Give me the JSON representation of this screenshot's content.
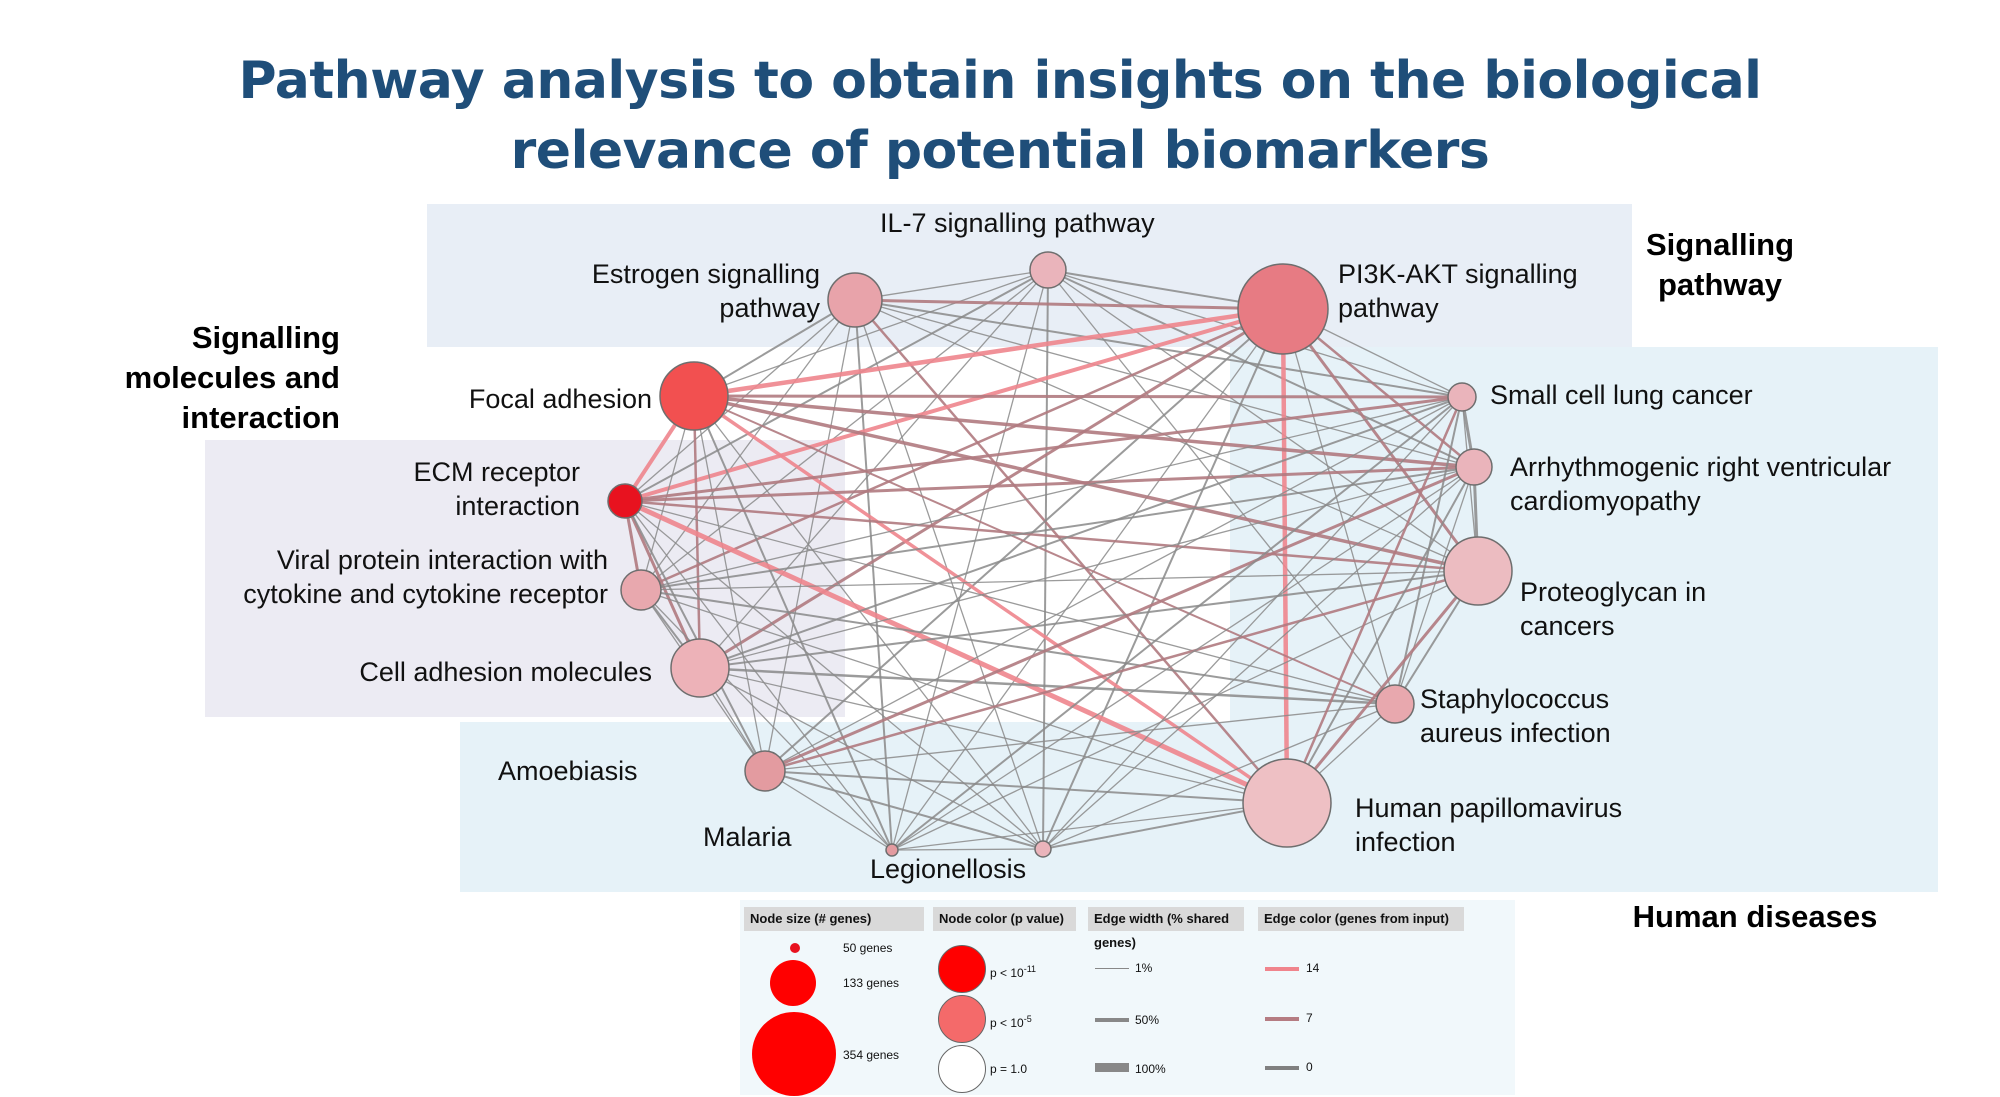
{
  "title": {
    "line1": "Pathway analysis to obtain insights on the biological",
    "line2": "relevance of potential biomarkers"
  },
  "categories": {
    "signalling_pathway": [
      "Signalling",
      "pathway"
    ],
    "signalling_molecules": [
      "Signalling",
      "molecules and",
      "interaction"
    ],
    "human_diseases": [
      "Human diseases"
    ]
  },
  "nodes": [
    {
      "id": "il7",
      "label_lines": [
        "IL-7 signalling pathway"
      ],
      "color": "#eab4bb"
    },
    {
      "id": "estrogen",
      "label_lines": [
        "Estrogen signalling",
        "pathway"
      ],
      "color": "#e8a3aa"
    },
    {
      "id": "pi3k",
      "label_lines": [
        "PI3K-AKT signalling",
        "pathway"
      ],
      "color": "#e77b83"
    },
    {
      "id": "focal",
      "label_lines": [
        "Focal adhesion"
      ],
      "color": "#f25050"
    },
    {
      "id": "ecm",
      "label_lines": [
        "ECM receptor",
        "interaction"
      ],
      "color": "#e8121f"
    },
    {
      "id": "viral",
      "label_lines": [
        "Viral protein interaction with",
        "cytokine and cytokine receptor"
      ],
      "color": "#e8a8ae"
    },
    {
      "id": "cam",
      "label_lines": [
        "Cell adhesion molecules"
      ],
      "color": "#edb2b8"
    },
    {
      "id": "amoeb",
      "label_lines": [
        "Amoebiasis"
      ],
      "color": "#e39ba0"
    },
    {
      "id": "malaria",
      "label_lines": [
        "Malaria"
      ],
      "color": "#e39ba0"
    },
    {
      "id": "legion",
      "label_lines": [
        "Legionellosis"
      ],
      "color": "#eab4bb"
    },
    {
      "id": "scl",
      "label_lines": [
        "Small cell lung cancer"
      ],
      "color": "#eab4bb"
    },
    {
      "id": "arrhy",
      "label_lines": [
        "Arrhythmogenic right ventricular",
        "cardiomyopathy"
      ],
      "color": "#eab4bb"
    },
    {
      "id": "proteo",
      "label_lines": [
        "Proteoglycan in",
        "cancers"
      ],
      "color": "#ecbcc1"
    },
    {
      "id": "staph",
      "label_lines": [
        "Staphylococcus",
        "aureus infection"
      ],
      "color": "#e8a8ae"
    },
    {
      "id": "hpv",
      "label_lines": [
        "Human papillomavirus",
        "infection"
      ],
      "color": "#eec0c4"
    },
    {
      "id": "small_legion",
      "label_lines": [],
      "color": "#eab4bb"
    }
  ],
  "legend": {
    "node_size": {
      "header": "Node size (# genes)",
      "items": [
        "50 genes",
        "133 genes",
        "354 genes"
      ]
    },
    "node_color": {
      "header": "Node color (p value)",
      "items": [
        {
          "text": "p < 10",
          "sup": "-11",
          "color": "#ff0000"
        },
        {
          "text": "p < 10",
          "sup": "-5",
          "color": "#f46a6a"
        },
        {
          "text": "p = 1.0",
          "sup": "",
          "color": "#ffffff"
        }
      ]
    },
    "edge_width": {
      "header": "Edge width (% shared genes)",
      "items": [
        "1%",
        "50%",
        "100%"
      ]
    },
    "edge_color": {
      "header": "Edge color (genes from input)",
      "items": [
        {
          "value": "14",
          "color": "#f0848c"
        },
        {
          "value": "7",
          "color": "#b57c82"
        },
        {
          "value": "0",
          "color": "#808080"
        }
      ]
    }
  },
  "colors": {
    "title": "#1f4e79",
    "edge_grey": "#8a8a8a",
    "edge_mid": "#b07a80",
    "edge_pink": "#ee858d"
  }
}
